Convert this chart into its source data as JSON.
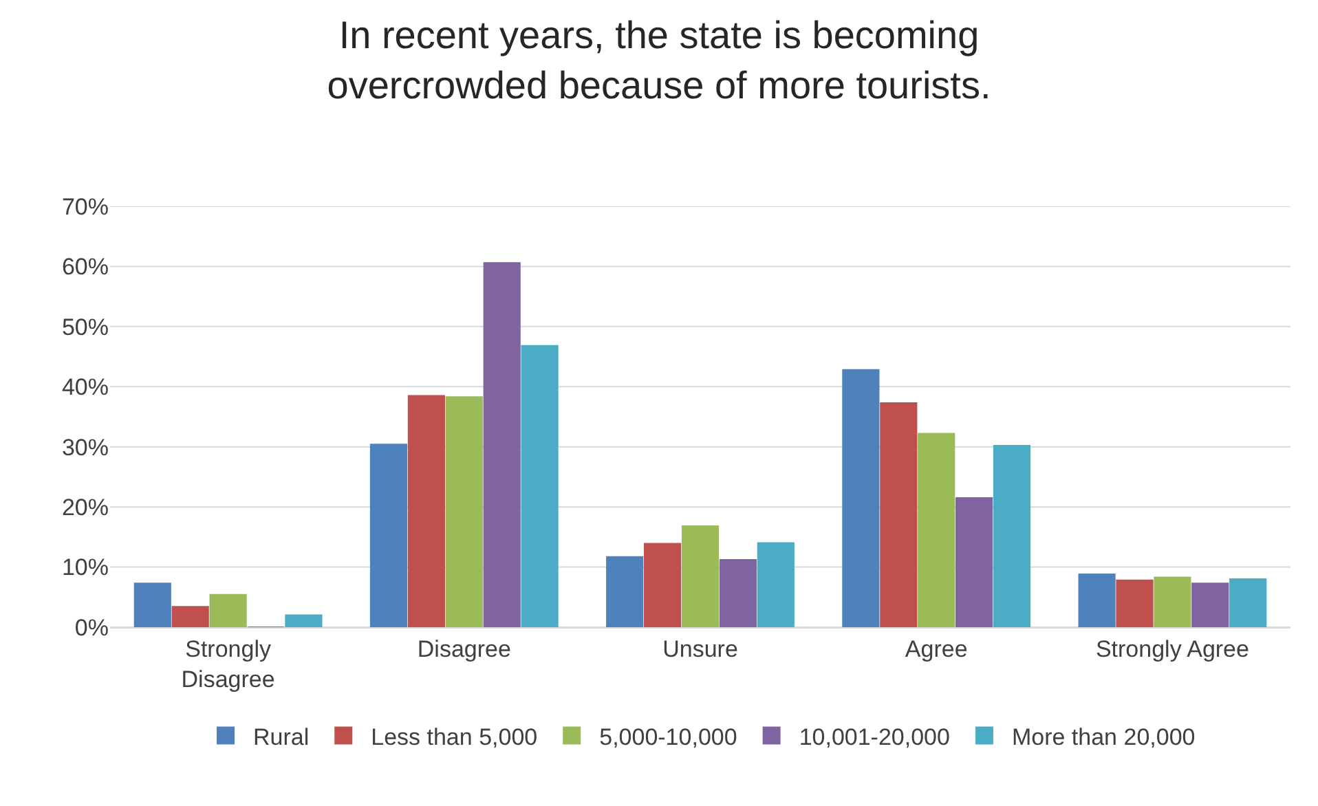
{
  "chart_data": {
    "type": "bar",
    "title": "In recent years, the state is becoming overcrowded because of more tourists.",
    "categories": [
      "Strongly Disagree",
      "Disagree",
      "Unsure",
      "Agree",
      "Strongly Agree"
    ],
    "series": [
      {
        "name": "Rural",
        "color": "#4f81bd",
        "values": [
          7.3,
          30.4,
          11.7,
          42.8,
          8.8
        ]
      },
      {
        "name": "Less than 5,000",
        "color": "#c0504d",
        "values": [
          3.4,
          38.5,
          13.9,
          37.3,
          7.8
        ]
      },
      {
        "name": "5,000-10,000",
        "color": "#9bbb59",
        "values": [
          5.4,
          38.3,
          16.8,
          32.2,
          8.3
        ]
      },
      {
        "name": "10,001-20,000",
        "color": "#8064a2",
        "values": [
          0,
          60.6,
          11.2,
          21.5,
          7.3
        ]
      },
      {
        "name": "More than 20,000",
        "color": "#4bacc6",
        "values": [
          2.0,
          46.8,
          14.0,
          30.2,
          8.0
        ]
      }
    ],
    "ylim": [
      0,
      70
    ],
    "yticks": [
      {
        "value": 0,
        "label": "0%"
      },
      {
        "value": 10,
        "label": "10%"
      },
      {
        "value": 20,
        "label": "20%"
      },
      {
        "value": 30,
        "label": "30%"
      },
      {
        "value": 40,
        "label": "40%"
      },
      {
        "value": 50,
        "label": "50%"
      },
      {
        "value": 60,
        "label": "60%"
      },
      {
        "value": 70,
        "label": "70%"
      }
    ],
    "grid": "y",
    "legend": "bottom"
  }
}
